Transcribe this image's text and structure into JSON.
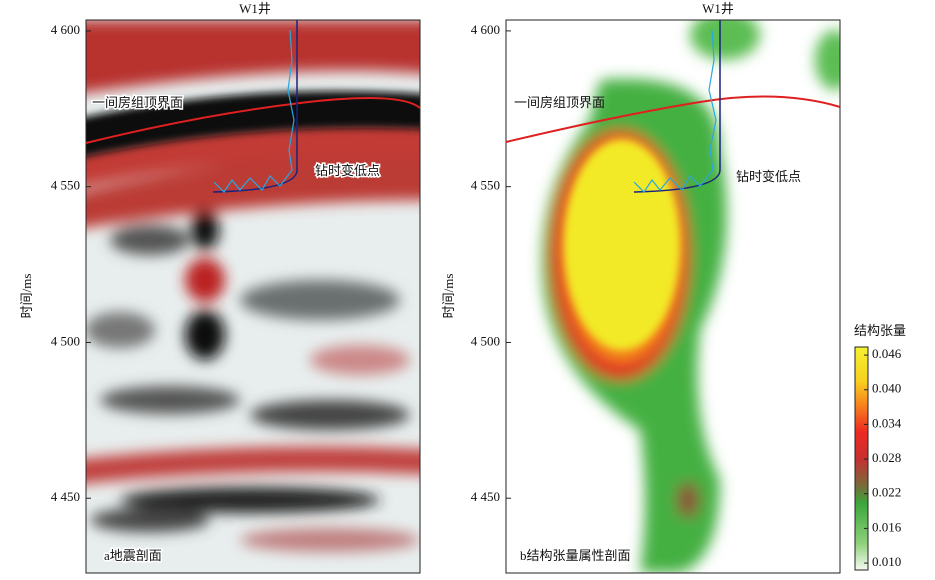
{
  "panels": [
    {
      "well": "W1井",
      "horizon_label": "一间房组顶界面",
      "point_label": "钻时变低点",
      "caption": "a地震剖面"
    },
    {
      "well": "W1井",
      "horizon_label": "一间房组顶界面",
      "point_label": "钻时变低点",
      "caption": "b结构张量属性剖面"
    }
  ],
  "y_axis": {
    "label": "时间/ms",
    "ylim": [
      4426,
      4603.5
    ],
    "yticks": [
      {
        "value": 4450,
        "label": "4 450"
      },
      {
        "value": 4500,
        "label": "4 500"
      },
      {
        "value": 4550,
        "label": "4 550"
      },
      {
        "value": 4600,
        "label": "4 600"
      }
    ]
  },
  "colorbar": {
    "title": "结构张量",
    "lim": [
      0.0088,
      0.0474
    ],
    "ticks": [
      {
        "value": 0.01,
        "label": "0.010"
      },
      0.016,
      0.022,
      0.028,
      0.034,
      {
        "value": 0.04,
        "label": "0.040"
      },
      0.046
    ]
  }
}
